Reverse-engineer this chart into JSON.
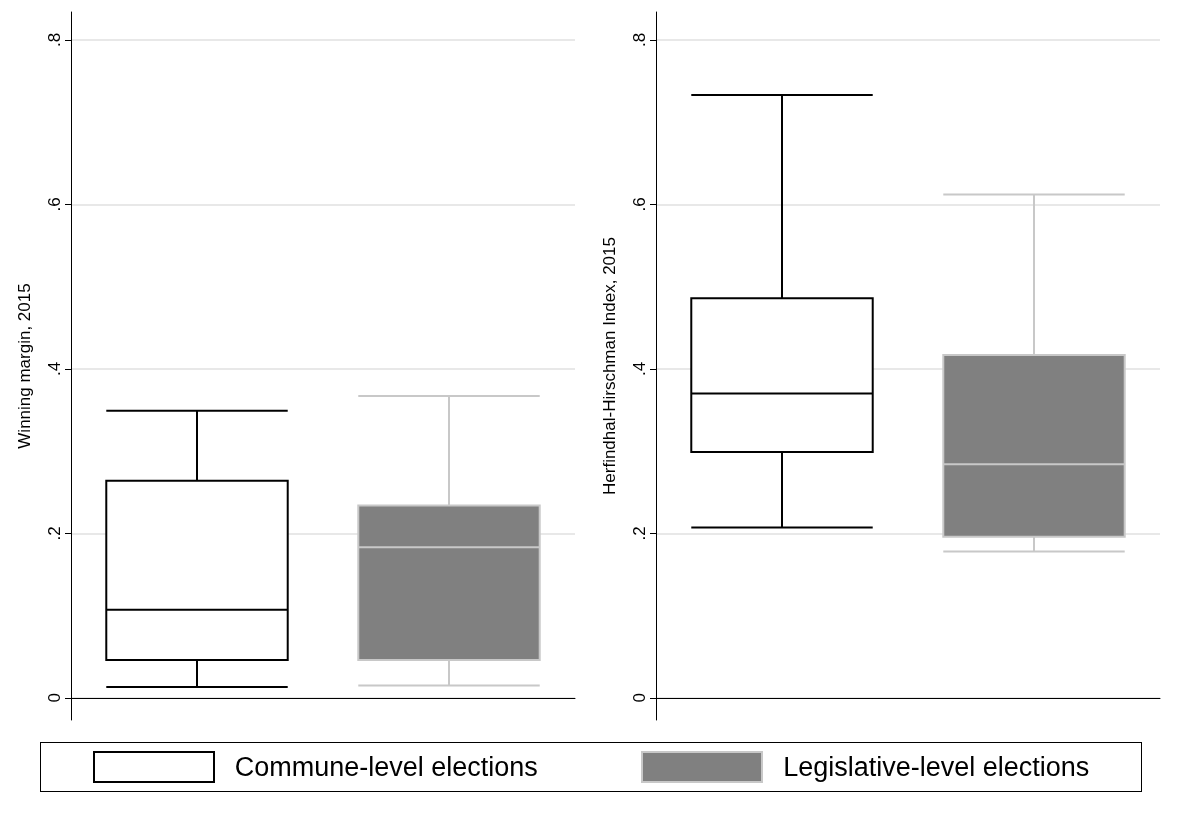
{
  "chart_data": [
    {
      "type": "box",
      "ylabel": "Winning margin, 2015",
      "categories": [
        null
      ],
      "ylim": [
        -0.027,
        0.834
      ],
      "yticks": [
        0,
        {
          "value": 0.2,
          "label": ".2"
        },
        {
          "value": 0.4,
          "label": ".4"
        },
        {
          "value": 0.6,
          "label": ".6"
        },
        {
          "value": 0.8,
          "label": ".8"
        }
      ],
      "grid": "y",
      "legend": "bottom",
      "series": [
        {
          "name": "Commune-level elections",
          "color": "#ffffff",
          "boxes": [
            {
              "low": 0.013,
              "q1": 0.046,
              "median": 0.107,
              "q3": 0.264,
              "high": 0.349
            }
          ]
        },
        {
          "name": "Legislative-level elections",
          "color": "#808080",
          "boxes": [
            {
              "low": 0.015,
              "q1": 0.046,
              "median": 0.183,
              "q3": 0.234,
              "high": 0.367
            }
          ]
        }
      ]
    },
    {
      "type": "box",
      "ylabel": "Herfindhal-Hirschman Index, 2015",
      "categories": [
        null
      ],
      "ylim": [
        -0.027,
        0.834
      ],
      "yticks": [
        0,
        {
          "value": 0.2,
          "label": ".2"
        },
        {
          "value": 0.4,
          "label": ".4"
        },
        {
          "value": 0.6,
          "label": ".6"
        },
        {
          "value": 0.8,
          "label": ".8"
        }
      ],
      "grid": "y",
      "series": [
        {
          "color": "#ffffff",
          "boxes": [
            {
              "low": 0.207,
              "q1": 0.299,
              "median": 0.37,
              "q3": 0.486,
              "high": 0.733
            }
          ]
        },
        {
          "color": "#808080",
          "boxes": [
            {
              "low": 0.178,
              "q1": 0.196,
              "median": 0.284,
              "q3": 0.417,
              "high": 0.612
            }
          ]
        }
      ]
    }
  ]
}
